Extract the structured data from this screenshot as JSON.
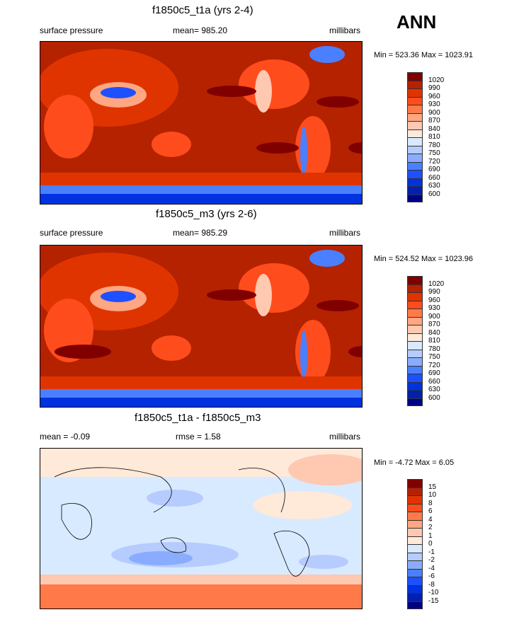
{
  "season": "ANN",
  "panels": [
    {
      "title": "f1850c5_t1a (yrs 2-4)",
      "left": "surface pressure",
      "center": "mean= 985.20",
      "right": "millibars",
      "minmax": "Min = 523.36 Max = 1023.91"
    },
    {
      "title": "f1850c5_m3 (yrs 2-6)",
      "left": "surface pressure",
      "center": "mean= 985.29",
      "right": "millibars",
      "minmax": "Min = 524.52 Max = 1023.96"
    },
    {
      "title": "f1850c5_t1a - f1850c5_m3",
      "left": "mean =  -0.09",
      "center": "rmse =   1.58",
      "right": "millibars",
      "minmax": "Min =  -4.72 Max =   6.05"
    }
  ],
  "colorbar_colors": [
    "#800000",
    "#b42200",
    "#e03400",
    "#ff4c1c",
    "#ff7a48",
    "#ffa682",
    "#ffc8b0",
    "#ffe9d9",
    "#d8eaff",
    "#b6ccff",
    "#8aacff",
    "#4a80ff",
    "#1e50ff",
    "#0032e0",
    "#0020b0",
    "#000085"
  ],
  "colorbar_abs_labels": [
    "1020",
    "990",
    "960",
    "930",
    "900",
    "870",
    "840",
    "810",
    "780",
    "750",
    "720",
    "690",
    "660",
    "630",
    "600"
  ],
  "colorbar_diff_labels": [
    "15",
    "10",
    "8",
    "6",
    "4",
    "2",
    "1",
    "0",
    "-1",
    "-2",
    "-4",
    "-6",
    "-8",
    "-10",
    "-15"
  ]
}
